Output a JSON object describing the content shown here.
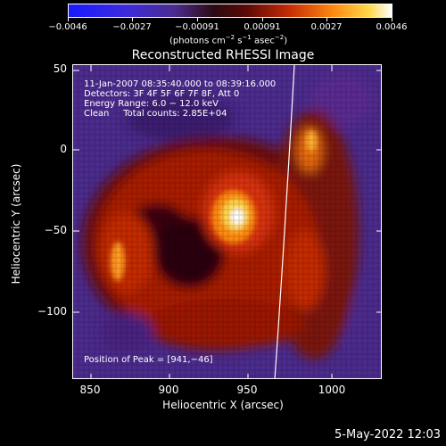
{
  "colorbar": {
    "ticks": [
      "−0.0046",
      "−0.0027",
      "−0.00091",
      "0.00091",
      "0.0027",
      "0.0046"
    ],
    "units_prefix": "(photons cm",
    "units_exp1": "−2",
    "units_mid1": " s",
    "units_exp2": "−1",
    "units_mid2": " asec",
    "units_exp3": "−2",
    "units_suffix": ")"
  },
  "title": "Reconstructed RHESSI Image",
  "axes": {
    "xlabel": "Heliocentric X (arcsec)",
    "ylabel": "Heliocentric Y (arcsec)",
    "xticks": [
      "850",
      "900",
      "950",
      "1000"
    ],
    "yticks": [
      "50",
      "0",
      "−50",
      "−100"
    ]
  },
  "annotations": {
    "time_range": "11-Jan-2007 08:35:40.000 to 08:39:16.000",
    "detectors": "Detectors: 3F 4F 5F 6F 7F 8F, Att 0",
    "energy": "Energy Range: 6.0 − 12.0 keV",
    "clean": "Clean     Total counts: 2.85E+04",
    "peak": "Position of Peak = [941,−46]"
  },
  "datestamp": "5-May-2022 12:03"
}
